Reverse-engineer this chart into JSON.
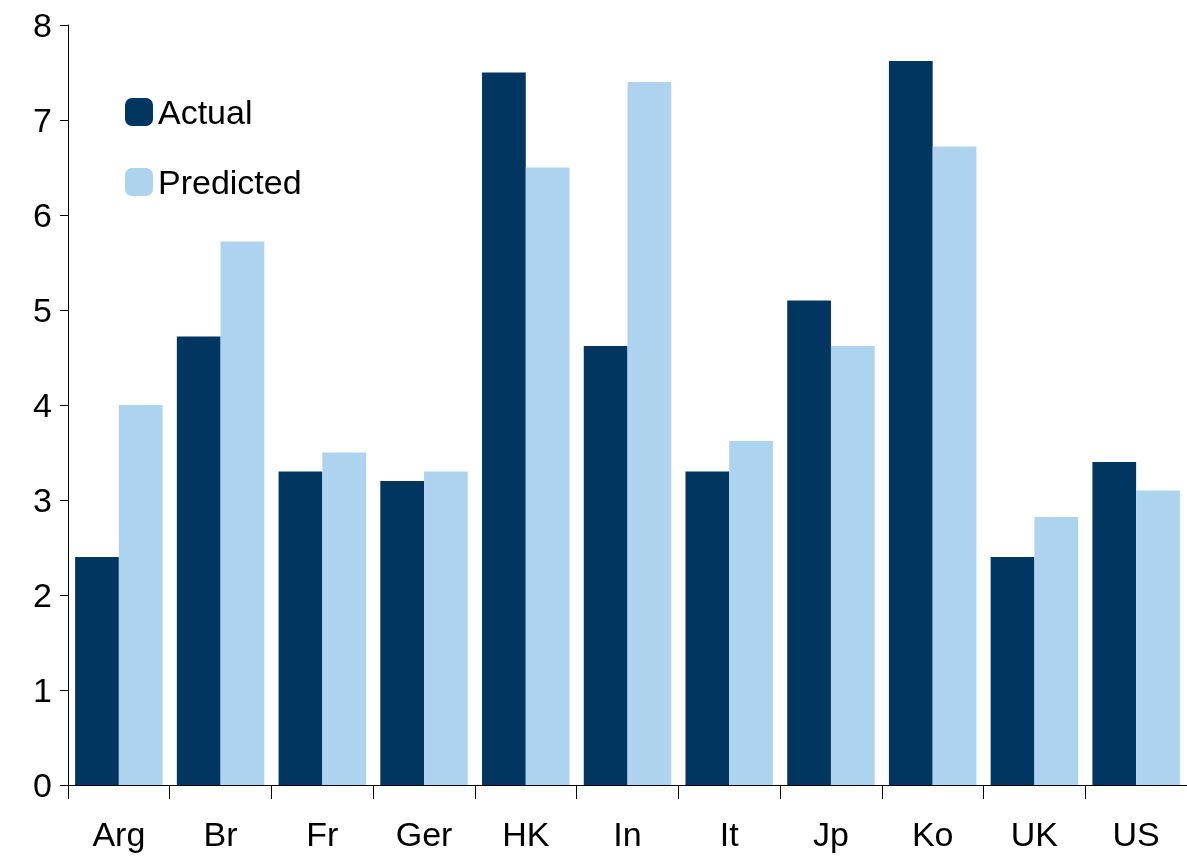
{
  "chart_data": {
    "type": "bar",
    "categories": [
      "Arg",
      "Br",
      "Fr",
      "Ger",
      "HK",
      "In",
      "It",
      "Jp",
      "Ko",
      "UK",
      "US"
    ],
    "series": [
      {
        "name": "Actual",
        "color": "#003660",
        "values": [
          2.4,
          4.72,
          3.3,
          3.2,
          7.5,
          4.62,
          3.3,
          5.1,
          7.62,
          2.4,
          3.4
        ]
      },
      {
        "name": "Predicted",
        "color": "#aed3ef",
        "values": [
          4.0,
          5.72,
          3.5,
          3.3,
          6.5,
          7.4,
          3.62,
          4.62,
          6.72,
          2.82,
          3.1
        ]
      }
    ],
    "ylim": [
      0,
      8
    ],
    "yticks": [
      0,
      1,
      2,
      3,
      4,
      5,
      6,
      7,
      8
    ],
    "grid": false,
    "legend": "top left"
  }
}
